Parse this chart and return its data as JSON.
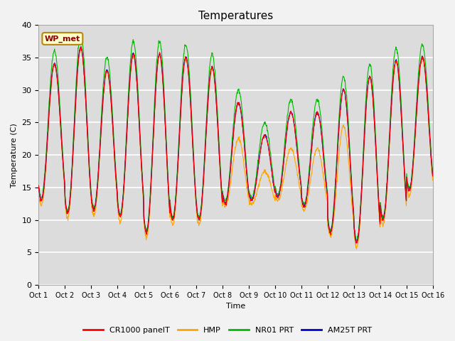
{
  "title": "Temperatures",
  "xlabel": "Time",
  "ylabel": "Temperature (C)",
  "ylim": [
    0,
    40
  ],
  "yticks": [
    0,
    5,
    10,
    15,
    20,
    25,
    30,
    35,
    40
  ],
  "xtick_labels": [
    "Oct 1",
    "Oct 2",
    "Oct 3",
    "Oct 4",
    "Oct 5",
    "Oct 6",
    "Oct 7",
    "Oct 8",
    "Oct 9",
    "Oct 10",
    "Oct 11",
    "Oct 12",
    "Oct 13",
    "Oct 14",
    "Oct 15",
    "Oct 16"
  ],
  "colors": {
    "CR1000_panelT": "#ff0000",
    "HMP": "#ffa500",
    "NR01_PRT": "#00bb00",
    "AM25T_PRT": "#0000cc"
  },
  "legend_labels": [
    "CR1000 panelT",
    "HMP",
    "NR01 PRT",
    "AM25T PRT"
  ],
  "annotation_text": "WP_met",
  "annotation_color": "#8b0000",
  "annotation_bg": "#ffffcc",
  "bg_color": "#dcdcdc",
  "grid_color": "#ffffff",
  "title_fontsize": 11,
  "tick_fontsize": 7,
  "label_fontsize": 8
}
